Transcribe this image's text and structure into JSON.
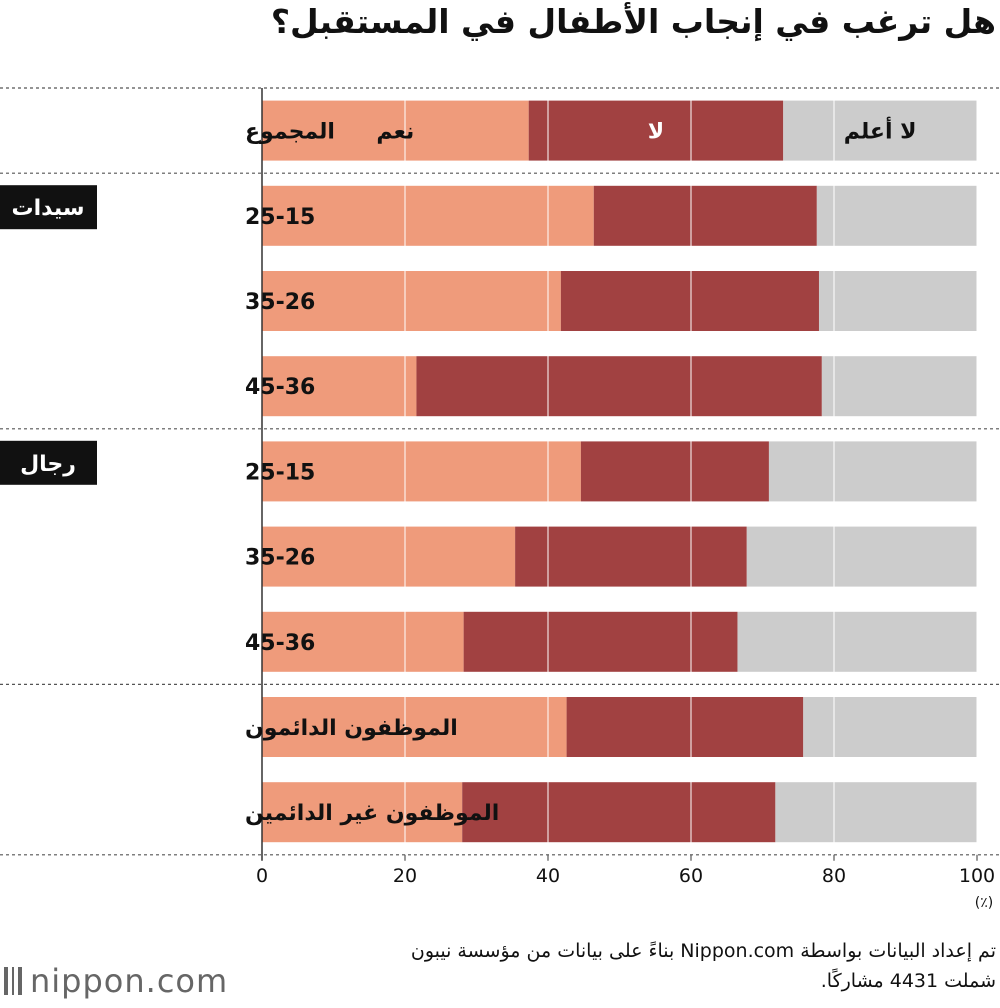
{
  "chart_data": {
    "type": "bar",
    "orientation": "horizontal",
    "stacked": true,
    "title": "هل ترغب في إنجاب الأطفال في المستقبل؟",
    "unit": "(٪)",
    "xlim": [
      0,
      100
    ],
    "x_ticks": [
      "0",
      "20",
      "40",
      "60",
      "80",
      "100"
    ],
    "grid": true,
    "series": [
      {
        "name": "نعم",
        "color": "#ef9b7b"
      },
      {
        "name": "لا",
        "color": "#a14141"
      },
      {
        "name": "لا أعلم",
        "color": "#cccccc"
      }
    ],
    "groups": [
      {
        "name": "",
        "rows": [
          0
        ]
      },
      {
        "name": "سيدات",
        "rows": [
          1,
          2,
          3
        ]
      },
      {
        "name": "رجال",
        "rows": [
          4,
          5,
          6
        ]
      },
      {
        "name": "",
        "rows": [
          7,
          8
        ]
      }
    ],
    "categories": [
      "المجموع",
      "25-15",
      "35-26",
      "45-36",
      "25-15",
      "35-26",
      "45-36",
      "الموظفون الدائمون",
      "الموظفون غير الدائمين"
    ],
    "values": [
      [
        37.3,
        35.6,
        27.1
      ],
      [
        46.4,
        31.2,
        22.4
      ],
      [
        41.8,
        36.1,
        22.1
      ],
      [
        21.6,
        56.7,
        21.7
      ],
      [
        44.6,
        26.3,
        29.1
      ],
      [
        35.4,
        32.4,
        32.2
      ],
      [
        28.2,
        38.3,
        33.5
      ],
      [
        42.6,
        33.1,
        24.3
      ],
      [
        28.0,
        43.8,
        28.2
      ]
    ]
  },
  "footer": {
    "line1": "تم إعداد البيانات بواسطة Nippon.com بناءً على بيانات من مؤسسة نيبون",
    "line2": "شملت 4431 مشاركًا."
  },
  "brand": {
    "name": "nippon.com"
  }
}
